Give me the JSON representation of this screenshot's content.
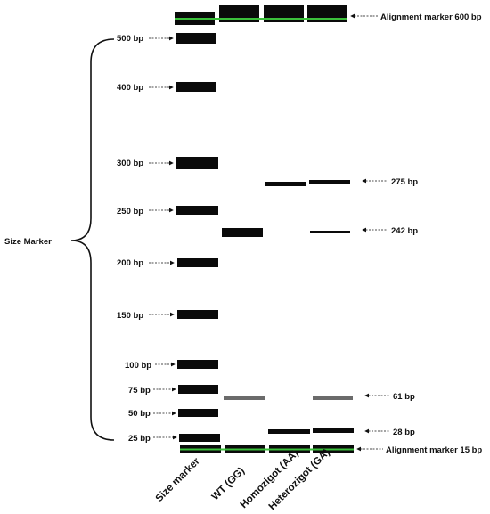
{
  "size_marker_label": "Size Marker",
  "lanes": [
    {
      "label": "Size marker"
    },
    {
      "label": "WT (GG)"
    },
    {
      "label": "Homozigot (AA)"
    },
    {
      "label": "Heterozigot  (GA)"
    }
  ],
  "top_marker_label": "Alignment marker 600 bp",
  "bottom_marker_label": "Alignment marker 15 bp",
  "ladder": [
    {
      "label": "500 bp",
      "bp": 500
    },
    {
      "label": "400 bp",
      "bp": 400
    },
    {
      "label": "300 bp",
      "bp": 300
    },
    {
      "label": "250 bp",
      "bp": 250
    },
    {
      "label": "200 bp",
      "bp": 200
    },
    {
      "label": "150 bp",
      "bp": 150
    },
    {
      "label": "100 bp",
      "bp": 100
    },
    {
      "label": "75 bp",
      "bp": 75
    },
    {
      "label": "50 bp",
      "bp": 50
    },
    {
      "label": "25 bp",
      "bp": 25
    }
  ],
  "sample_bands": [
    {
      "label": "275 bp",
      "bp": 275,
      "lanes": [
        "Homozigot (AA)",
        "Heterozigot  (GA)"
      ]
    },
    {
      "label": "242 bp",
      "bp": 242,
      "lanes": [
        "WT (GG)",
        "Heterozigot  (GA)"
      ]
    },
    {
      "label": "61 bp",
      "bp": 61,
      "lanes": [
        "WT (GG)",
        "Heterozigot  (GA)"
      ]
    },
    {
      "label": "28 bp",
      "bp": 28,
      "lanes": [
        "Homozigot (AA)",
        "Heterozigot  (GA)"
      ]
    }
  ],
  "colors": {
    "band": "#0a0a0a",
    "faint_band": "#6b6b6b",
    "alignment_line": "#3bbf3b",
    "text": "#111111"
  }
}
